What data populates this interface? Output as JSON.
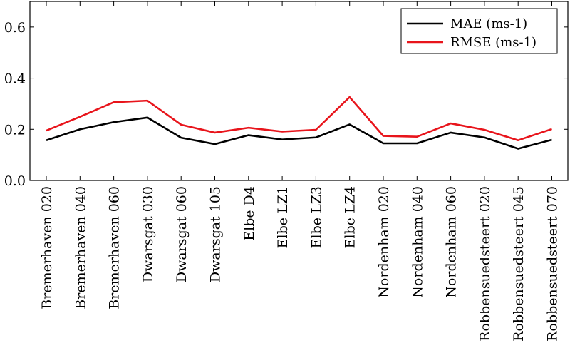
{
  "chart_data": {
    "type": "line",
    "categories": [
      "Bremerhaven 020",
      "Bremerhaven 040",
      "Bremerhaven 060",
      "Dwarsgat 030",
      "Dwarsgat 060",
      "Dwarsgat 105",
      "Elbe D4",
      "Elbe LZ1",
      "Elbe LZ3",
      "Elbe LZ4",
      "Nordenham 020",
      "Nordenham 040",
      "Nordenham 060",
      "Robbensuedsteert 020",
      "Robbensuedsteert 045",
      "Robbensuedsteert 070"
    ],
    "series": [
      {
        "name": "MAE (ms-1)",
        "color": "#000000",
        "values": [
          0.157,
          0.2,
          0.228,
          0.246,
          0.167,
          0.142,
          0.177,
          0.16,
          0.168,
          0.219,
          0.145,
          0.145,
          0.187,
          0.168,
          0.124,
          0.159
        ]
      },
      {
        "name": "RMSE (ms-1)",
        "color": "#e8141b",
        "values": [
          0.195,
          0.249,
          0.306,
          0.312,
          0.218,
          0.187,
          0.206,
          0.191,
          0.198,
          0.326,
          0.174,
          0.171,
          0.223,
          0.198,
          0.157,
          0.201
        ]
      }
    ],
    "yticks": [
      "0.0",
      "0.2",
      "0.4",
      "0.6"
    ],
    "ylim": [
      0,
      0.7
    ],
    "title": "",
    "xlabel": "",
    "ylabel": "",
    "grid": false,
    "legend_position": "top-right"
  }
}
